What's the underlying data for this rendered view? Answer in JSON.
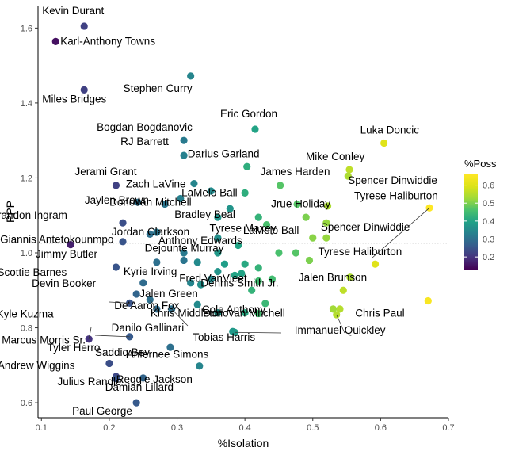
{
  "chart_data": {
    "type": "scatter",
    "xlabel": "%Isolation",
    "ylabel": "PPP",
    "xlim": [
      0.095,
      0.7
    ],
    "ylim": [
      0.56,
      1.66
    ],
    "xticks": [
      0.1,
      0.2,
      0.3,
      0.4,
      0.5,
      0.6,
      0.7
    ],
    "yticks": [
      0.6,
      0.8,
      1.0,
      1.2,
      1.4,
      1.6
    ],
    "reference_line_y": 1.026,
    "legend": {
      "title": "%Poss",
      "ticks": [
        0.2,
        0.3,
        0.4,
        0.5,
        0.6
      ],
      "range": [
        0.13,
        0.66
      ],
      "colormap": "viridis"
    },
    "labeled_points": [
      {
        "name": "Kevin Durant",
        "x": 0.163,
        "y": 1.605,
        "c": 0.22
      },
      {
        "name": "Karl-Anthony Towns",
        "x": 0.121,
        "y": 1.564,
        "c": 0.15
      },
      {
        "name": "Miles Bridges",
        "x": 0.163,
        "y": 1.435,
        "c": 0.22
      },
      {
        "name": "Stephen Curry",
        "x": 0.32,
        "y": 1.472,
        "c": 0.34
      },
      {
        "name": "Eric Gordon",
        "x": 0.415,
        "y": 1.33,
        "c": 0.4
      },
      {
        "name": "Bogdan Bogdanovic",
        "x": 0.31,
        "y": 1.3,
        "c": 0.32
      },
      {
        "name": "Luka Doncic",
        "x": 0.605,
        "y": 1.293,
        "c": 0.6
      },
      {
        "name": "RJ Barrett",
        "x": 0.31,
        "y": 1.26,
        "c": 0.33
      },
      {
        "name": "Darius Garland",
        "x": 0.403,
        "y": 1.23,
        "c": 0.42
      },
      {
        "name": "Mike Conley",
        "x": 0.554,
        "y": 1.222,
        "c": 0.56
      },
      {
        "name": "Jerami Grant",
        "x": 0.21,
        "y": 1.18,
        "c": 0.22
      },
      {
        "name": "James Harden",
        "x": 0.452,
        "y": 1.18,
        "c": 0.47
      },
      {
        "name": "Spencer Dinwiddie",
        "x": 0.552,
        "y": 1.205,
        "c": 0.54
      },
      {
        "name": "Zach LaVine",
        "x": 0.325,
        "y": 1.185,
        "c": 0.34
      },
      {
        "name": "LaMelo Ball",
        "x": 0.4,
        "y": 1.16,
        "c": 0.42
      },
      {
        "name": "Jaylen Brown",
        "x": 0.242,
        "y": 1.135,
        "c": 0.3
      },
      {
        "name": "Donovan Mitchell",
        "x": 0.282,
        "y": 1.13,
        "c": 0.31
      },
      {
        "name": "Bradley Beal",
        "x": 0.378,
        "y": 1.118,
        "c": 0.37
      },
      {
        "name": "Jrue Holiday",
        "x": 0.477,
        "y": 1.13,
        "c": 0.47
      },
      {
        "name": "Tyrese Haliburton",
        "x": 0.672,
        "y": 1.12,
        "c": 0.66
      },
      {
        "name": "Brandon Ingram",
        "x": 0.22,
        "y": 1.08,
        "c": 0.24
      },
      {
        "name": "Tyrese Maxey",
        "x": 0.432,
        "y": 1.075,
        "c": 0.46
      },
      {
        "name": "Spencer Dinwiddie",
        "x": 0.52,
        "y": 1.08,
        "c": 0.52
      },
      {
        "name": "Giannis Antetokounmpo",
        "x": 0.143,
        "y": 1.022,
        "c": 0.17
      },
      {
        "name": "Jordan Clarkson",
        "x": 0.27,
        "y": 1.055,
        "c": 0.31
      },
      {
        "name": "Jimmy Butler",
        "x": 0.22,
        "y": 1.03,
        "c": 0.25
      },
      {
        "name": "Anthony Edwards",
        "x": 0.36,
        "y": 1.04,
        "c": 0.36
      },
      {
        "name": "Dejounte Murray",
        "x": 0.39,
        "y": 1.02,
        "c": 0.4
      },
      {
        "name": "LaMelo Ball",
        "x": 0.52,
        "y": 1.04,
        "c": 0.52
      },
      {
        "name": "Tyrese Haliburton",
        "x": 0.592,
        "y": 0.97,
        "c": 0.6
      },
      {
        "name": "Scottie Barnes",
        "x": 0.21,
        "y": 0.962,
        "c": 0.25
      },
      {
        "name": "Kyrie Irving",
        "x": 0.27,
        "y": 0.975,
        "c": 0.3
      },
      {
        "name": "Jalen Brunson",
        "x": 0.555,
        "y": 0.935,
        "c": 0.54
      },
      {
        "name": "Fred VanVleet",
        "x": 0.385,
        "y": 0.94,
        "c": 0.4
      },
      {
        "name": "Devin Booker",
        "x": 0.24,
        "y": 0.89,
        "c": 0.28
      },
      {
        "name": "Dennis Smith Jr.",
        "x": 0.42,
        "y": 0.925,
        "c": 0.45
      },
      {
        "name": "Kyle Kuzma",
        "x": 0.23,
        "y": 0.866,
        "c": 0.25
      },
      {
        "name": "Jalen Green",
        "x": 0.33,
        "y": 0.862,
        "c": 0.35
      },
      {
        "name": "Cole Anthony",
        "x": 0.43,
        "y": 0.865,
        "c": 0.44
      },
      {
        "name": "De'Aaron Fox",
        "x": 0.26,
        "y": 0.875,
        "c": 0.3
      },
      {
        "name": "Chris Paul",
        "x": 0.67,
        "y": 0.872,
        "c": 0.65
      },
      {
        "name": "Marcus Morris Sr.",
        "x": 0.17,
        "y": 0.77,
        "c": 0.2
      },
      {
        "name": "Khris Middleton",
        "x": 0.36,
        "y": 0.84,
        "c": 0.37
      },
      {
        "name": "Donovan Mitchell",
        "x": 0.42,
        "y": 0.838,
        "c": 0.45
      },
      {
        "name": "Danilo Gallinari",
        "x": 0.292,
        "y": 0.85,
        "c": 0.3
      },
      {
        "name": "Tobias Harris",
        "x": 0.385,
        "y": 0.788,
        "c": 0.39
      },
      {
        "name": "Immanuel Quickley",
        "x": 0.535,
        "y": 0.835,
        "c": 0.55
      },
      {
        "name": "Tyler Herro",
        "x": 0.23,
        "y": 0.776,
        "c": 0.26
      },
      {
        "name": "Andrew Wiggins",
        "x": 0.2,
        "y": 0.705,
        "c": 0.24
      },
      {
        "name": "Saddiq Bey",
        "x": 0.29,
        "y": 0.748,
        "c": 0.3
      },
      {
        "name": "Anfernee Simons",
        "x": 0.382,
        "y": 0.79,
        "c": 0.38
      },
      {
        "name": "Reggie Jackson",
        "x": 0.333,
        "y": 0.698,
        "c": 0.34
      },
      {
        "name": "Julius Randle",
        "x": 0.21,
        "y": 0.664,
        "c": 0.25
      },
      {
        "name": "Damian Lillard",
        "x": 0.25,
        "y": 0.666,
        "c": 0.28
      },
      {
        "name": "Paul George",
        "x": 0.24,
        "y": 0.6,
        "c": 0.26
      }
    ],
    "extra_points": [
      {
        "x": 0.305,
        "y": 1.145,
        "c": 0.33
      },
      {
        "x": 0.35,
        "y": 1.165,
        "c": 0.35
      },
      {
        "x": 0.36,
        "y": 1.095,
        "c": 0.37
      },
      {
        "x": 0.42,
        "y": 1.095,
        "c": 0.43
      },
      {
        "x": 0.49,
        "y": 1.095,
        "c": 0.5
      },
      {
        "x": 0.522,
        "y": 1.125,
        "c": 0.54
      },
      {
        "x": 0.5,
        "y": 1.04,
        "c": 0.51
      },
      {
        "x": 0.45,
        "y": 1.0,
        "c": 0.46
      },
      {
        "x": 0.475,
        "y": 1.0,
        "c": 0.47
      },
      {
        "x": 0.495,
        "y": 0.98,
        "c": 0.5
      },
      {
        "x": 0.31,
        "y": 0.98,
        "c": 0.31
      },
      {
        "x": 0.33,
        "y": 0.975,
        "c": 0.35
      },
      {
        "x": 0.36,
        "y": 1.0,
        "c": 0.38
      },
      {
        "x": 0.37,
        "y": 0.97,
        "c": 0.39
      },
      {
        "x": 0.4,
        "y": 0.97,
        "c": 0.41
      },
      {
        "x": 0.42,
        "y": 0.96,
        "c": 0.43
      },
      {
        "x": 0.32,
        "y": 0.92,
        "c": 0.34
      },
      {
        "x": 0.335,
        "y": 0.915,
        "c": 0.36
      },
      {
        "x": 0.36,
        "y": 0.95,
        "c": 0.37
      },
      {
        "x": 0.395,
        "y": 0.945,
        "c": 0.4
      },
      {
        "x": 0.41,
        "y": 0.9,
        "c": 0.43
      },
      {
        "x": 0.44,
        "y": 0.93,
        "c": 0.45
      },
      {
        "x": 0.35,
        "y": 0.93,
        "c": 0.35
      },
      {
        "x": 0.545,
        "y": 0.9,
        "c": 0.56
      },
      {
        "x": 0.54,
        "y": 0.85,
        "c": 0.55
      },
      {
        "x": 0.53,
        "y": 0.85,
        "c": 0.53
      },
      {
        "x": 0.4,
        "y": 0.84,
        "c": 0.41
      },
      {
        "x": 0.27,
        "y": 0.85,
        "c": 0.29
      },
      {
        "x": 0.25,
        "y": 0.92,
        "c": 0.29
      },
      {
        "x": 0.26,
        "y": 1.05,
        "c": 0.3
      },
      {
        "x": 0.21,
        "y": 0.67,
        "c": 0.23
      },
      {
        "x": 0.31,
        "y": 1.0,
        "c": 0.32
      }
    ]
  }
}
